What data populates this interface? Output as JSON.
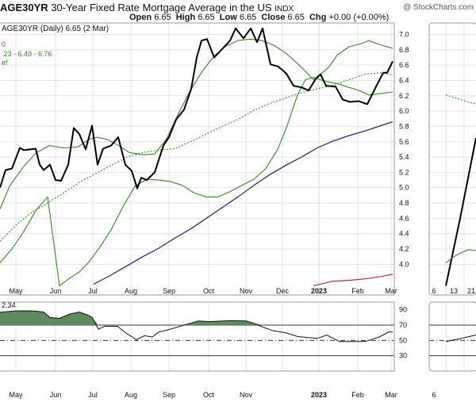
{
  "header": {
    "symbol": "AGE30YR",
    "title": "30-Year Fixed Rate Mortgage Average in the US",
    "exchange": "INDX",
    "watermark": "@ StockCharts.com",
    "ohlc": {
      "open_label": "Open",
      "open": "6.65",
      "high_label": "High",
      "high": "6.65",
      "low_label": "Low",
      "low": "6.65",
      "close_label": "Close",
      "close": "6.65",
      "chg_label": "Chg",
      "chg": "+0.00 (+0.00%)"
    }
  },
  "legend": {
    "line1": "AGE30YR (Daily) 6.65 (2 Mar)",
    "line2": "0",
    "line3": ".23 - 6.49 - 6.76",
    "line4": "ef"
  },
  "indicator": {
    "label": "2.34"
  },
  "colors": {
    "price": "#000000",
    "bollinger": "#2e8b22",
    "ma_dotted": "#2e8b22",
    "ma_navy": "#1a1a8c",
    "ma_red": "#cc2233",
    "rsi_fill": "#5f8a5f",
    "grid": "#e4e4e4",
    "panel_border": "#999999"
  },
  "chart_data": [
    {
      "type": "line",
      "panel": "price",
      "ylim": [
        3.6,
        7.15
      ],
      "y_ticks": [
        "4.0",
        "4.2",
        "4.4",
        "4.6",
        "4.8",
        "5.0",
        "5.2",
        "5.4",
        "5.6",
        "5.8",
        "6.0",
        "6.2",
        "6.4",
        "6.6",
        "6.8",
        "7.0"
      ],
      "x_tick_labels": [
        "May",
        "Jun",
        "Jul",
        "Aug",
        "Sep",
        "Oct",
        "Nov",
        "Dec",
        "2023",
        "Feb",
        "Mar"
      ],
      "series": [
        {
          "key": "price",
          "points": [
            [
              0,
              5.0
            ],
            [
              7,
              5.23
            ],
            [
              15,
              5.25
            ],
            [
              25,
              5.52
            ],
            [
              30,
              5.49
            ],
            [
              38,
              5.5
            ],
            [
              45,
              5.51
            ],
            [
              50,
              5.3
            ],
            [
              55,
              5.23
            ],
            [
              63,
              5.3
            ],
            [
              70,
              5.1
            ],
            [
              77,
              5.09
            ],
            [
              86,
              5.3
            ],
            [
              93,
              5.78
            ],
            [
              100,
              5.7
            ],
            [
              108,
              5.5
            ],
            [
              116,
              5.81
            ],
            [
              123,
              5.3
            ],
            [
              130,
              5.51
            ],
            [
              140,
              5.55
            ],
            [
              149,
              5.66
            ],
            [
              158,
              5.3
            ],
            [
              166,
              5.22
            ],
            [
              173,
              4.99
            ],
            [
              178,
              5.13
            ],
            [
              185,
              5.1
            ],
            [
              195,
              5.2
            ],
            [
              206,
              5.55
            ],
            [
              213,
              5.66
            ],
            [
              222,
              5.89
            ],
            [
              232,
              6.02
            ],
            [
              241,
              6.29
            ],
            [
              248,
              6.7
            ],
            [
              254,
              6.92
            ],
            [
              261,
              6.94
            ],
            [
              270,
              6.7
            ],
            [
              280,
              6.81
            ],
            [
              290,
              6.92
            ],
            [
              297,
              7.08
            ],
            [
              307,
              6.95
            ],
            [
              316,
              7.08
            ],
            [
              324,
              6.9
            ],
            [
              331,
              7.08
            ],
            [
              341,
              6.61
            ],
            [
              351,
              6.58
            ],
            [
              361,
              6.49
            ],
            [
              370,
              6.33
            ],
            [
              380,
              6.31
            ],
            [
              389,
              6.27
            ],
            [
              398,
              6.42
            ],
            [
              404,
              6.48
            ],
            [
              411,
              6.33
            ],
            [
              423,
              6.32
            ],
            [
              432,
              6.15
            ],
            [
              441,
              6.12
            ],
            [
              452,
              6.13
            ],
            [
              463,
              6.09
            ],
            [
              474,
              6.32
            ],
            [
              483,
              6.5
            ],
            [
              488,
              6.5
            ],
            [
              495,
              6.65
            ]
          ]
        },
        {
          "key": "bb_upper",
          "points": [
            [
              0,
              4.72
            ],
            [
              12,
              5.02
            ],
            [
              30,
              5.28
            ],
            [
              45,
              5.45
            ],
            [
              62,
              5.55
            ],
            [
              80,
              5.52
            ],
            [
              98,
              5.53
            ],
            [
              112,
              5.63
            ],
            [
              122,
              5.66
            ],
            [
              135,
              5.63
            ],
            [
              148,
              5.56
            ],
            [
              163,
              5.46
            ],
            [
              180,
              5.43
            ],
            [
              195,
              5.44
            ],
            [
              210,
              5.64
            ],
            [
              225,
              5.97
            ],
            [
              240,
              6.27
            ],
            [
              255,
              6.52
            ],
            [
              270,
              6.72
            ],
            [
              285,
              6.85
            ],
            [
              300,
              6.92
            ],
            [
              315,
              6.94
            ],
            [
              330,
              6.92
            ],
            [
              345,
              6.86
            ],
            [
              360,
              6.76
            ],
            [
              375,
              6.62
            ],
            [
              385,
              6.52
            ],
            [
              395,
              6.41
            ],
            [
              405,
              6.49
            ],
            [
              415,
              6.58
            ],
            [
              425,
              6.73
            ],
            [
              440,
              6.84
            ],
            [
              455,
              6.88
            ],
            [
              465,
              6.92
            ],
            [
              478,
              6.87
            ],
            [
              495,
              6.82
            ]
          ]
        },
        {
          "key": "bb_lower",
          "points": [
            [
              0,
              4.02
            ],
            [
              15,
              4.2
            ],
            [
              30,
              4.43
            ],
            [
              45,
              4.7
            ],
            [
              60,
              4.88
            ],
            [
              75,
              3.72
            ],
            [
              88,
              3.82
            ],
            [
              100,
              3.9
            ],
            [
              112,
              4.03
            ],
            [
              125,
              4.21
            ],
            [
              140,
              4.45
            ],
            [
              155,
              4.75
            ],
            [
              170,
              5.02
            ],
            [
              185,
              5.11
            ],
            [
              200,
              5.1
            ],
            [
              215,
              5.08
            ],
            [
              230,
              5.03
            ],
            [
              245,
              4.93
            ],
            [
              260,
              4.88
            ],
            [
              275,
              4.88
            ],
            [
              290,
              4.95
            ],
            [
              305,
              5.03
            ],
            [
              320,
              5.11
            ],
            [
              335,
              5.25
            ],
            [
              350,
              5.5
            ],
            [
              362,
              5.81
            ],
            [
              375,
              6.21
            ],
            [
              385,
              6.41
            ],
            [
              395,
              6.44
            ],
            [
              410,
              6.39
            ],
            [
              425,
              6.36
            ],
            [
              440,
              6.31
            ],
            [
              452,
              6.27
            ],
            [
              465,
              6.21
            ],
            [
              480,
              6.23
            ],
            [
              495,
              6.25
            ]
          ]
        },
        {
          "key": "ma_dotted",
          "dashed": true,
          "points": [
            [
              0,
              4.3
            ],
            [
              20,
              4.51
            ],
            [
              40,
              4.68
            ],
            [
              60,
              4.8
            ],
            [
              80,
              4.93
            ],
            [
              100,
              5.07
            ],
            [
              120,
              5.18
            ],
            [
              140,
              5.29
            ],
            [
              160,
              5.4
            ],
            [
              180,
              5.46
            ],
            [
              200,
              5.49
            ],
            [
              220,
              5.51
            ],
            [
              240,
              5.6
            ],
            [
              260,
              5.7
            ],
            [
              280,
              5.8
            ],
            [
              300,
              5.89
            ],
            [
              320,
              6.01
            ],
            [
              340,
              6.1
            ],
            [
              360,
              6.17
            ],
            [
              380,
              6.24
            ],
            [
              400,
              6.29
            ],
            [
              420,
              6.34
            ],
            [
              440,
              6.41
            ],
            [
              460,
              6.48
            ],
            [
              480,
              6.5
            ],
            [
              495,
              6.47
            ]
          ]
        },
        {
          "key": "ma_navy",
          "points": [
            [
              118,
              3.74
            ],
            [
              140,
              3.86
            ],
            [
              160,
              3.98
            ],
            [
              180,
              4.1
            ],
            [
              200,
              4.21
            ],
            [
              220,
              4.34
            ],
            [
              240,
              4.46
            ],
            [
              260,
              4.6
            ],
            [
              280,
              4.74
            ],
            [
              300,
              4.88
            ],
            [
              320,
              5.03
            ],
            [
              340,
              5.17
            ],
            [
              360,
              5.29
            ],
            [
              380,
              5.4
            ],
            [
              400,
              5.52
            ],
            [
              420,
              5.61
            ],
            [
              440,
              5.68
            ],
            [
              460,
              5.74
            ],
            [
              480,
              5.81
            ],
            [
              495,
              5.86
            ]
          ]
        },
        {
          "key": "ma_red",
          "points": [
            [
              395,
              3.72
            ],
            [
              420,
              3.78
            ],
            [
              440,
              3.79
            ],
            [
              460,
              3.81
            ],
            [
              480,
              3.84
            ],
            [
              495,
              3.87
            ]
          ]
        }
      ]
    },
    {
      "type": "area",
      "panel": "indicator",
      "ylim": [
        10,
        100
      ],
      "y_ticks": [
        "30",
        "50",
        "70",
        "90"
      ],
      "reference_lines": [
        30,
        50,
        70
      ],
      "x_tick_labels": [
        "May",
        "Jun",
        "Jul",
        "Aug",
        "Sep",
        "Oct",
        "Nov",
        "2023",
        "Feb",
        "Mar"
      ],
      "series": [
        {
          "key": "rsi",
          "points": [
            [
              0,
              86.8
            ],
            [
              20,
              88.5
            ],
            [
              40,
              88.6
            ],
            [
              55,
              87.1
            ],
            [
              63,
              79.8
            ],
            [
              75,
              78.8
            ],
            [
              88,
              84.5
            ],
            [
              100,
              87.1
            ],
            [
              110,
              83.3
            ],
            [
              116,
              80.2
            ],
            [
              124,
              64.7
            ],
            [
              132,
              68.4
            ],
            [
              148,
              68.4
            ],
            [
              160,
              58.7
            ],
            [
              172,
              51.1
            ],
            [
              182,
              56.1
            ],
            [
              192,
              54.5
            ],
            [
              200,
              60.9
            ],
            [
              215,
              64.7
            ],
            [
              235,
              70.8
            ],
            [
              250,
              75.4
            ],
            [
              264,
              74.5
            ],
            [
              290,
              75.8
            ],
            [
              310,
              75.4
            ],
            [
              320,
              72.4
            ],
            [
              334,
              66.3
            ],
            [
              345,
              62.4
            ],
            [
              360,
              60.1
            ],
            [
              375,
              55.1
            ],
            [
              400,
              52.6
            ],
            [
              412,
              57.1
            ],
            [
              428,
              48.5
            ],
            [
              445,
              48.5
            ],
            [
              460,
              48.5
            ],
            [
              478,
              54.5
            ],
            [
              490,
              60.9
            ],
            [
              495,
              60.9
            ]
          ]
        }
      ]
    },
    {
      "type": "line",
      "panel": "side-price",
      "x_tick_labels": [
        "6",
        "13",
        "21"
      ],
      "series": [
        {
          "key": "side_price",
          "points": [
            [
              562,
              3.72
            ],
            [
              580,
              4.6
            ],
            [
              600,
              5.65
            ]
          ]
        },
        {
          "key": "side_bb",
          "points": [
            [
              562,
              4.02
            ],
            [
              575,
              4.12
            ],
            [
              590,
              4.19
            ],
            [
              600,
              4.18
            ]
          ]
        },
        {
          "key": "side_ma",
          "dashed": true,
          "points": [
            [
              562,
              6.21
            ],
            [
              575,
              6.17
            ],
            [
              590,
              6.12
            ],
            [
              600,
              6.09
            ]
          ]
        }
      ]
    },
    {
      "type": "line",
      "panel": "side-indicator",
      "x_tick_labels": [
        "6",
        "13",
        "21"
      ],
      "series": [
        {
          "key": "side_rsi",
          "points": [
            [
              562,
              48.5
            ],
            [
              580,
              52.2
            ],
            [
              600,
              57.1
            ]
          ]
        }
      ]
    }
  ]
}
